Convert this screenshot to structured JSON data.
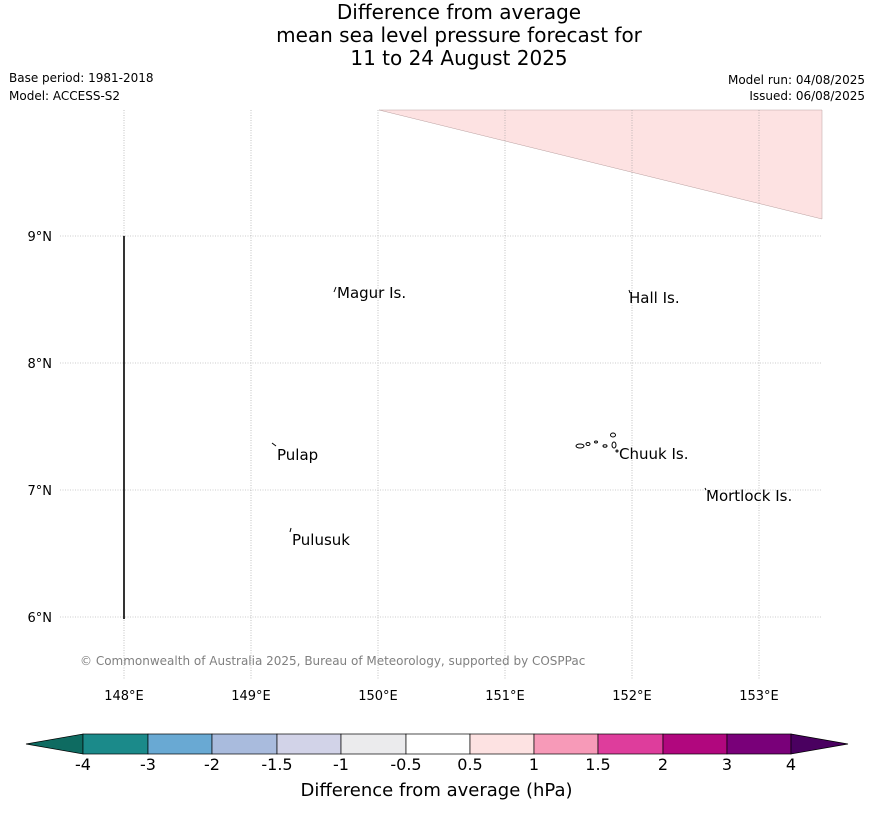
{
  "title": {
    "line1": "Difference from average",
    "line2": "mean sea level pressure forecast for",
    "line3": "11 to 24 August 2025"
  },
  "meta": {
    "base_period": "Base period: 1981-2018",
    "model": "Model: ACCESS-S2",
    "model_run": "Model run: 04/08/2025",
    "issued": "Issued: 06/08/2025"
  },
  "map": {
    "lon_range": [
      147.5,
      153.5
    ],
    "lat_range": [
      5.5,
      10.0
    ],
    "lon_ticks": [
      "148°E",
      "149°E",
      "150°E",
      "151°E",
      "152°E",
      "153°E"
    ],
    "lat_ticks": [
      "9°N",
      "8°N",
      "7°N",
      "6°N"
    ],
    "grid": true,
    "places": [
      {
        "name": "Magur Is."
      },
      {
        "name": "Hall Is."
      },
      {
        "name": "Pulap"
      },
      {
        "name": "Chuuk Is."
      },
      {
        "name": "Mortlock Is."
      },
      {
        "name": "Pulusuk"
      }
    ],
    "anomaly_region_category": "0.5 to 1",
    "copyright": "© Commonwealth of Australia 2025, Bureau of Meteorology, supported by COSPPac"
  },
  "colorbar": {
    "title": "Difference from average (hPa)",
    "labels": [
      "-4",
      "-3",
      "-2",
      "-1.5",
      "-1",
      "-0.5",
      "0.5",
      "1",
      "1.5",
      "2",
      "3",
      "4"
    ],
    "colors": [
      "#1b8a8a",
      "#69a9d3",
      "#a9bbdd",
      "#d2d3e8",
      "#ebebed",
      "#ffffff",
      "#fde2e2",
      "#f79ab8",
      "#de3d9c",
      "#b1077e",
      "#790079"
    ],
    "low_extend_color": "#0e6b61",
    "high_extend_color": "#4a0060"
  },
  "colors": {
    "positive_anomaly": "#fde2e2",
    "grid": "#999999",
    "copyright_text": "#808080"
  }
}
